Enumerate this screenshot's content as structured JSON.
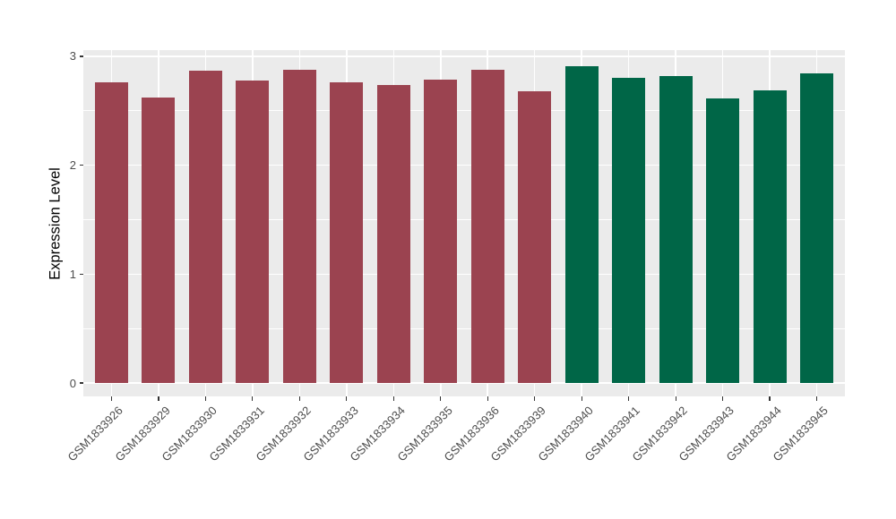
{
  "chart_data": {
    "type": "bar",
    "title": "",
    "xlabel": "",
    "ylabel": "Expression Level",
    "categories": [
      "GSM1833926",
      "GSM1833929",
      "GSM1833930",
      "GSM1833931",
      "GSM1833932",
      "GSM1833933",
      "GSM1833934",
      "GSM1833935",
      "GSM1833936",
      "GSM1833939",
      "GSM1833940",
      "GSM1833941",
      "GSM1833942",
      "GSM1833943",
      "GSM1833944",
      "GSM1833945"
    ],
    "values": [
      2.76,
      2.62,
      2.87,
      2.78,
      2.88,
      2.76,
      2.74,
      2.79,
      2.88,
      2.68,
      2.91,
      2.8,
      2.82,
      2.61,
      2.69,
      2.84
    ],
    "groups": [
      0,
      0,
      0,
      0,
      0,
      0,
      0,
      0,
      0,
      0,
      1,
      1,
      1,
      1,
      1,
      1
    ],
    "group_colors": [
      "#9B4350",
      "#006647"
    ],
    "yticks": [
      0,
      1,
      2,
      3
    ],
    "ytick_labels": [
      "0",
      "1",
      "2",
      "3"
    ],
    "yminor": [
      0.5,
      1.5,
      2.5
    ],
    "ylim": [
      0,
      3
    ],
    "bar_width_fraction": 0.7,
    "grid": true,
    "legend": "none",
    "panel_background": "#EBEBEB",
    "grid_color": "#FFFFFF",
    "tick_mark_color": "#333333",
    "tick_text_color": "#4D4D4D",
    "axis_title_color": "#000000",
    "figure_background": "#FFFFFF"
  }
}
